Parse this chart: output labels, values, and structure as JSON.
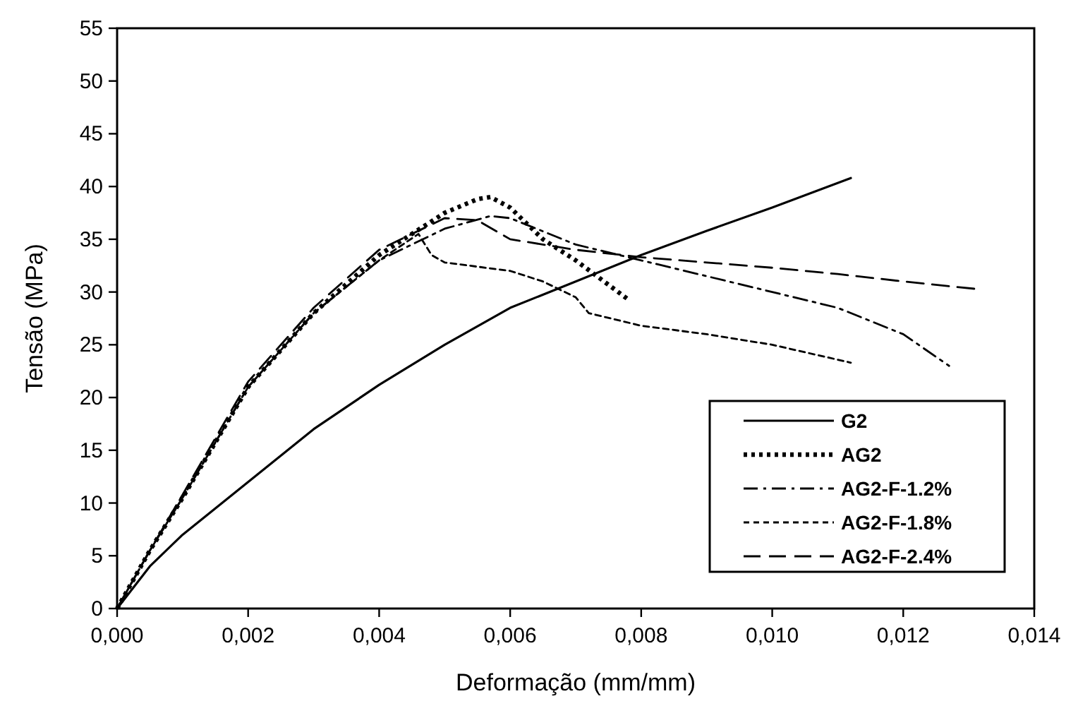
{
  "chart_data": {
    "type": "line",
    "xlabel": "Deformação (mm/mm)",
    "ylabel": "Tensão (MPa)",
    "xlim": [
      0,
      0.014
    ],
    "xticks": [
      {
        "value": 0,
        "label": "0,000"
      },
      {
        "value": 0.002,
        "label": "0,002"
      },
      {
        "value": 0.004,
        "label": "0,004"
      },
      {
        "value": 0.006,
        "label": "0,006"
      },
      {
        "value": 0.008,
        "label": "0,008"
      },
      {
        "value": 0.01,
        "label": "0,010"
      },
      {
        "value": 0.012,
        "label": "0,012"
      },
      {
        "value": 0.014,
        "label": "0,014"
      }
    ],
    "ylim": [
      0,
      55
    ],
    "yticks": [
      0,
      5,
      10,
      15,
      20,
      25,
      30,
      35,
      40,
      45,
      50,
      55
    ],
    "grid": false,
    "legend": "bottom right",
    "marker": "none",
    "series": [
      {
        "name": "G2",
        "color": "#000000",
        "line_style": "solid",
        "x": [
          0,
          0.0005,
          0.001,
          0.002,
          0.003,
          0.004,
          0.005,
          0.006,
          0.007,
          0.008,
          0.009,
          0.01,
          0.0112
        ],
        "values": [
          0,
          4,
          7,
          12,
          17,
          21.2,
          25,
          28.5,
          31,
          33.5,
          35.8,
          38,
          40.8
        ]
      },
      {
        "name": "AG2",
        "color": "#000000",
        "line_style": "dotted",
        "x": [
          0,
          0.0005,
          0.001,
          0.002,
          0.003,
          0.004,
          0.005,
          0.0055,
          0.0057,
          0.006,
          0.0065,
          0.007,
          0.0078
        ],
        "values": [
          0,
          5.5,
          10.5,
          21,
          28,
          33.5,
          37.5,
          38.8,
          39,
          38,
          35,
          33,
          29.3
        ]
      },
      {
        "name": "AG2-F-1.2%",
        "color": "#000000",
        "line_style": "dashdot",
        "x": [
          0,
          0.0005,
          0.001,
          0.002,
          0.003,
          0.004,
          0.005,
          0.0057,
          0.006,
          0.007,
          0.008,
          0.009,
          0.01,
          0.011,
          0.012,
          0.0127
        ],
        "values": [
          0,
          5.5,
          10.5,
          21,
          28,
          33,
          36,
          37.2,
          37,
          34.5,
          33,
          31.5,
          30,
          28.5,
          26,
          23
        ]
      },
      {
        "name": "AG2-F-1.8%",
        "color": "#000000",
        "line_style": "dashed",
        "x": [
          0,
          0.0005,
          0.001,
          0.002,
          0.003,
          0.004,
          0.0046,
          0.0048,
          0.005,
          0.006,
          0.0065,
          0.007,
          0.0072,
          0.008,
          0.009,
          0.01,
          0.0112
        ],
        "values": [
          0,
          5.5,
          10.5,
          21,
          28,
          33,
          35.5,
          33.5,
          32.8,
          32,
          31,
          29.5,
          28,
          26.8,
          26,
          25,
          23.3
        ]
      },
      {
        "name": "AG2-F-2.4%",
        "color": "#000000",
        "line_style": "longdash",
        "x": [
          0,
          0.0005,
          0.001,
          0.002,
          0.003,
          0.004,
          0.005,
          0.0055,
          0.006,
          0.007,
          0.008,
          0.009,
          0.01,
          0.011,
          0.012,
          0.0131
        ],
        "values": [
          0,
          5.5,
          10.8,
          21.5,
          28.5,
          34,
          37,
          36.8,
          35,
          34,
          33.3,
          32.8,
          32.3,
          31.7,
          31,
          30.3
        ]
      }
    ]
  }
}
